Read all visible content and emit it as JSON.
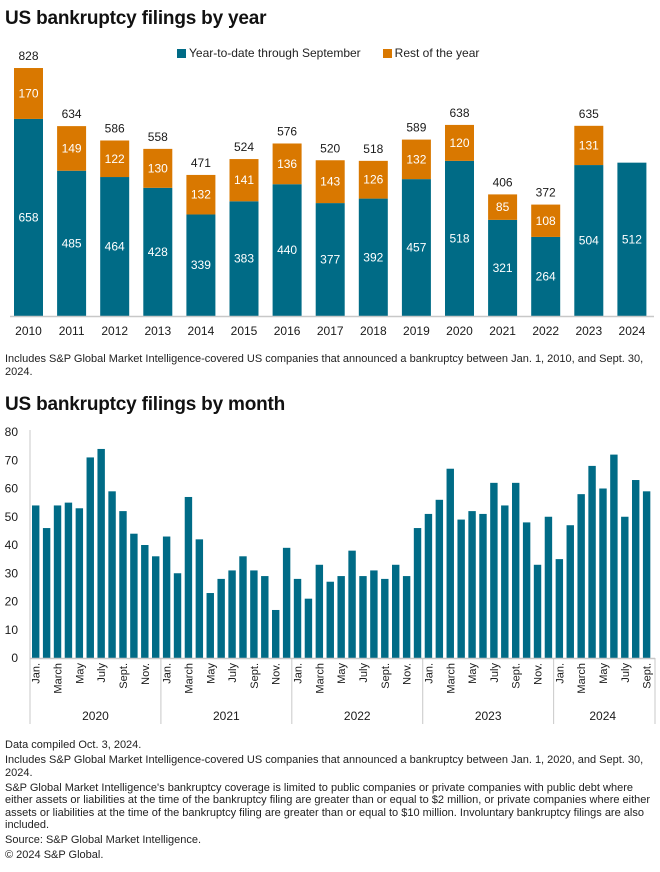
{
  "colors": {
    "ytd": "#006b86",
    "rest": "#d97800",
    "axis": "#c8c8c8",
    "text": "#1a1a1a"
  },
  "title1": "US bankruptcy filings by year",
  "title2": "US bankruptcy filings by month",
  "legend": {
    "ytd": "Year-to-date through September",
    "rest": "Rest of the year"
  },
  "note1": "Includes S&P Global Market Intelligence-covered US companies that announced a bankruptcy between Jan. 1, 2010, and Sept. 30, 2024.",
  "footnotes": [
    "Data compiled Oct. 3, 2024.",
    "Includes S&P Global Market Intelligence-covered US companies that announced a bankruptcy between Jan. 1, 2020, and Sept. 30, 2024.",
    "S&P Global Market Intelligence's bankruptcy coverage is limited to public companies or private companies with public debt where either assets or liabilities at the time of the bankruptcy filing are greater than or equal to $2 million, or private companies where either assets or liabilities at the time of the bankruptcy filing are greater than or equal to $10 million. Involuntary bankruptcy filings are also included.",
    "Source: S&P Global Market Intelligence.",
    "© 2024 S&P Global."
  ],
  "chart_data": [
    {
      "type": "bar",
      "stacked": true,
      "title": "US bankruptcy filings by year",
      "categories": [
        "2010",
        "2011",
        "2012",
        "2013",
        "2014",
        "2015",
        "2016",
        "2017",
        "2018",
        "2019",
        "2020",
        "2021",
        "2022",
        "2023",
        "2024"
      ],
      "series": [
        {
          "name": "Year-to-date through September",
          "values": [
            658,
            485,
            464,
            428,
            339,
            383,
            440,
            377,
            392,
            457,
            518,
            321,
            264,
            504,
            512
          ]
        },
        {
          "name": "Rest of the year",
          "values": [
            170,
            149,
            122,
            130,
            132,
            141,
            136,
            143,
            126,
            132,
            120,
            85,
            108,
            131,
            null
          ]
        }
      ],
      "totals": [
        828,
        634,
        586,
        558,
        471,
        524,
        576,
        520,
        518,
        589,
        638,
        406,
        372,
        635,
        null
      ],
      "legend_position": "top-center",
      "ylim": [
        0,
        850
      ],
      "y_axis_shown": false,
      "grid": false
    },
    {
      "type": "bar",
      "title": "US bankruptcy filings by month",
      "ylim": [
        0,
        80
      ],
      "yticks": [
        0,
        10,
        20,
        30,
        40,
        50,
        60,
        70,
        80
      ],
      "grid": false,
      "groups": [
        "2020",
        "2021",
        "2022",
        "2023",
        "2024"
      ],
      "month_tick_labels": [
        "Jan.",
        "",
        "March",
        "",
        "May",
        "",
        "July",
        "",
        "Sept.",
        "",
        "Nov.",
        ""
      ],
      "series": [
        {
          "name": "Filings",
          "values": [
            54,
            46,
            54,
            55,
            53,
            71,
            74,
            59,
            52,
            44,
            40,
            36,
            43,
            30,
            57,
            42,
            23,
            28,
            31,
            36,
            31,
            29,
            17,
            39,
            28,
            21,
            33,
            27,
            29,
            38,
            29,
            31,
            28,
            33,
            29,
            46,
            51,
            56,
            67,
            49,
            52,
            51,
            62,
            54,
            62,
            48,
            33,
            50,
            35,
            47,
            58,
            68,
            60,
            72,
            50,
            63,
            59
          ]
        }
      ]
    }
  ]
}
